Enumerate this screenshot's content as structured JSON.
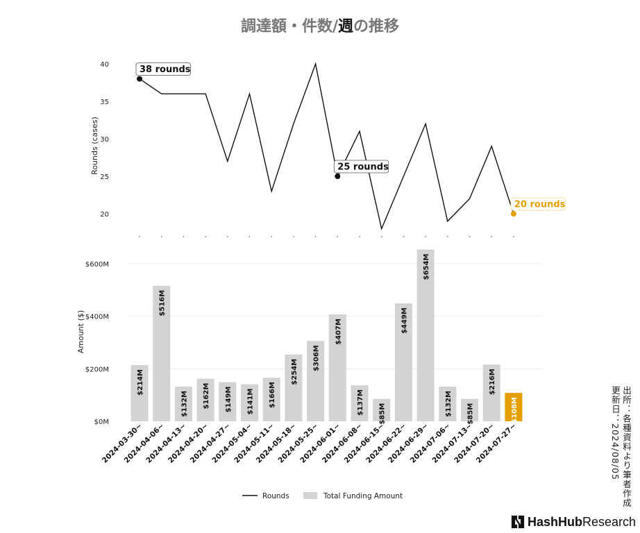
{
  "title": {
    "prefix": "調達額・件数/",
    "highlight": "週",
    "suffix": "の推移"
  },
  "source_note": {
    "line1": "出所：各種資料より筆者作成",
    "line2": "更新日：2024/08/05"
  },
  "brand": {
    "name_bold": "HashHub",
    "name_rest": "Research"
  },
  "colors": {
    "line": "#111111",
    "bar": "#d3d3d3",
    "highlight": "#e69f00",
    "grid": "#eeeeee"
  },
  "chart_data": {
    "type": "bar+line",
    "categories": [
      "2024-03-30~",
      "2024-04-06~",
      "2024-04-13~",
      "2024-04-20~",
      "2024-04-27~",
      "2024-05-04~",
      "2024-05-11~",
      "2024-05-18~",
      "2024-05-25~",
      "2024-06-01~",
      "2024-06-08~",
      "2024-06-15~",
      "2024-06-22~",
      "2024-06-29~",
      "2024-07-06~",
      "2024-07-13~",
      "2024-07-20~",
      "2024-07-27~"
    ],
    "line": {
      "name": "Rounds",
      "ylabel": "Rounds (cases)",
      "values": [
        38,
        36,
        36,
        36,
        27,
        36,
        23,
        32,
        40,
        25,
        31,
        18,
        25,
        32,
        19,
        22,
        29,
        20
      ],
      "ylim": [
        17,
        41
      ],
      "yticks": [
        20,
        25,
        30,
        35,
        40
      ],
      "annotations": [
        {
          "index": 0,
          "label": "38 rounds"
        },
        {
          "index": 9,
          "label": "25 rounds"
        },
        {
          "index": 17,
          "label": "20 rounds",
          "highlight": true
        }
      ]
    },
    "bars": {
      "name": "Total Funding Amount",
      "ylabel": "Amount ($)",
      "values": [
        214,
        516,
        132,
        162,
        149,
        141,
        166,
        254,
        306,
        407,
        137,
        85,
        449,
        654,
        132,
        85,
        216,
        108
      ],
      "labels": [
        "$214M",
        "$516M",
        "$132M",
        "$162M",
        "$149M",
        "$141M",
        "$166M",
        "$254M",
        "$306M",
        "$407M",
        "$137M",
        "$85M",
        "$449M",
        "$654M",
        "$132M",
        "$85M",
        "$216M",
        "$108M"
      ],
      "ylim": [
        0,
        680
      ],
      "yticks": [
        0,
        200,
        400,
        600
      ],
      "ytick_labels": [
        "$0M",
        "$200M",
        "$400M",
        "$600M"
      ],
      "highlight_index": 17
    },
    "legend": {
      "position": "bottom-center",
      "entries": [
        "Rounds",
        "Total Funding Amount"
      ]
    },
    "grid": true
  }
}
